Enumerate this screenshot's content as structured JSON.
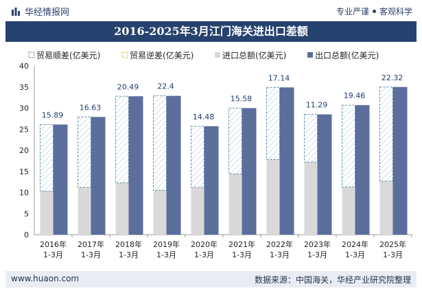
{
  "header": {
    "brand": "华经情报网",
    "slogan_left": "专业严谨",
    "slogan_right": "客观科学"
  },
  "chart_data": {
    "type": "bar",
    "title": "2016-2025年3月江门海关进出口差额",
    "categories": [
      "2016年\n1-3月",
      "2017年\n1-3月",
      "2018年\n1-3月",
      "2019年\n1-3月",
      "2020年\n1-3月",
      "2021年\n1-3月",
      "2022年\n1-3月",
      "2023年\n1-3月",
      "2024年\n1-3月",
      "2025年\n1-3月"
    ],
    "series": [
      {
        "name": "贸易顺差(亿美元)",
        "values": [
          15.89,
          16.63,
          20.49,
          22.4,
          14.48,
          15.58,
          17.14,
          11.29,
          19.46,
          22.32
        ]
      },
      {
        "name": "贸易逆差(亿美元)",
        "values": [
          0,
          0,
          0,
          0,
          0,
          0,
          0,
          0,
          0,
          0
        ]
      },
      {
        "name": "进口总额(亿美元)",
        "values": [
          10.3,
          11.2,
          12.3,
          10.5,
          11.2,
          14.4,
          17.8,
          17.2,
          11.3,
          12.7
        ]
      },
      {
        "name": "出口总额(亿美元)",
        "values": [
          26.1,
          27.9,
          32.8,
          32.9,
          25.7,
          30.0,
          34.9,
          28.5,
          30.7,
          35.0
        ]
      }
    ],
    "data_labels": [
      "15.89",
      "16.63",
      "20.49",
      "22.4",
      "14.48",
      "15.58",
      "17.14",
      "11.29",
      "19.46",
      "22.32"
    ],
    "ylim": [
      0,
      40
    ],
    "yticks": [
      "0",
      "5",
      "10",
      "15",
      "20",
      "25",
      "30",
      "35",
      "40"
    ],
    "colors": {
      "import": "#d9d9d9",
      "export": "#5b6e9c",
      "surplus_stroke": "#5b8fae",
      "deficit_stroke": "#e8b23c",
      "label": "#1f3d6d"
    }
  },
  "footer": {
    "site": "www.huaon.com",
    "source": "数据来源：中国海关，华经产业研究院整理"
  }
}
